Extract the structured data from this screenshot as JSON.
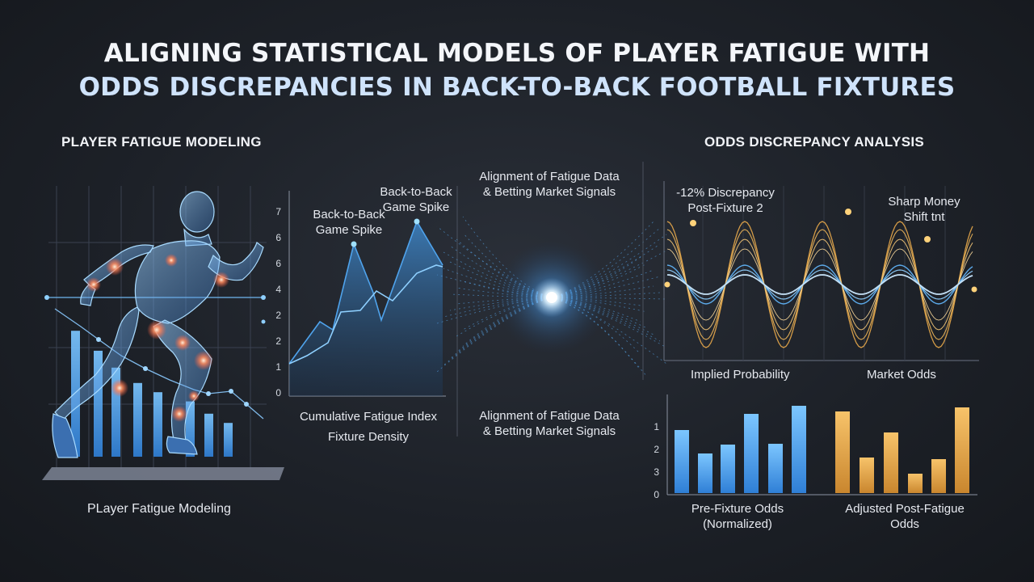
{
  "title": {
    "line1": "ALIGNING STATISTICAL MODELS OF PLAYER FATIGUE WITH",
    "line2": "ODDS DISCREPANCIES IN BACK-TO-BACK FOOTBALL FIXTURES"
  },
  "left": {
    "section": "PLAYER FATIGUE MODELING",
    "caption": "PLayer Fatigue Modeling",
    "bar_levels": [
      0.82,
      0.69,
      0.58,
      0.48,
      0.42,
      0.36,
      0.28,
      0.22
    ]
  },
  "fatigue_chart": {
    "y_ticks": [
      "0",
      "1",
      "2",
      "2",
      "4",
      "6",
      "6",
      "7"
    ],
    "spike1": [
      "Back-to-Back",
      "Game Spike"
    ],
    "spike2": [
      "Back-to-Back",
      "Game Spike"
    ],
    "caption1": "Cumulative Fatigue Index",
    "caption2": "Fixture Density"
  },
  "center": {
    "top": [
      "Alignment of Fatigue Data",
      "& Betting Market Signals"
    ],
    "bottom": [
      "Alignment of Fatigue Data",
      "& Betting Market Signals"
    ]
  },
  "right": {
    "section": "ODDS DISCREPANCY ANALYSIS",
    "ann1": [
      "-12% Discrepancy",
      "Post-Fixture 2"
    ],
    "ann2": [
      "Sharp Money",
      "Shift tnt"
    ],
    "wave_label1": "Implied Probability",
    "wave_label2": "Market Odds",
    "bar_y_ticks": [
      "1",
      "2",
      "3",
      "0"
    ],
    "bar_label1": [
      "Pre-Fixture Odds",
      "(Normalized)"
    ],
    "bar_label2": [
      "Adjusted Post-Fatigue",
      "Odds"
    ]
  },
  "colors": {
    "blue": "#5fb0f2",
    "orange": "#e8a94a",
    "glow": "#d8f0ff"
  }
}
